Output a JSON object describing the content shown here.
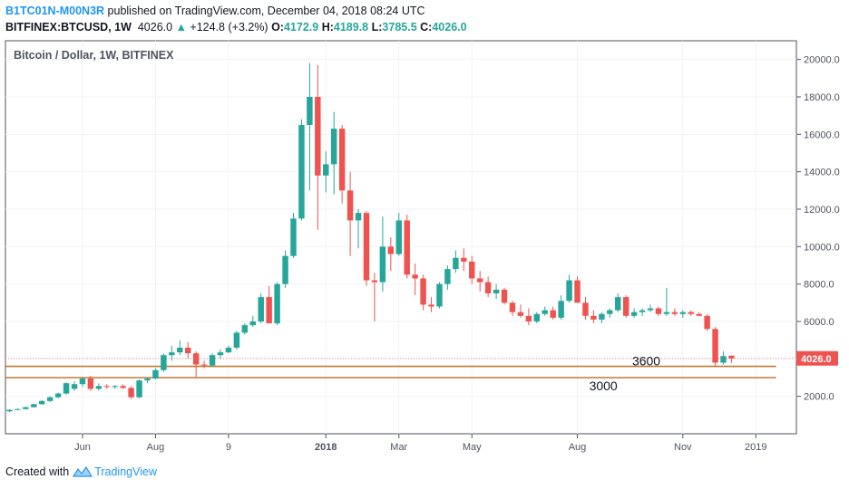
{
  "header": {
    "author": "B1TC01N-M00N3R",
    "published_text": " published on TradingView.com, December 04, 2018 08:24 UTC",
    "symbol": "BITFINEX:BTCUSD, 1W",
    "last": "4026.0",
    "change_arrow": "▲",
    "change": "+124.8 (+3.2%)",
    "o_label": "O:",
    "o_value": "4172.9",
    "h_label": "H:",
    "h_value": "4189.8",
    "l_label": "L:",
    "l_value": "3785.5",
    "c_label": "C:",
    "c_value": "4026.0"
  },
  "footer": {
    "created_with": "Created with",
    "brand": "TradingView"
  },
  "colors": {
    "up": "#26a69a",
    "down": "#ef5350",
    "level_line": "#c07a32",
    "price_label_bg": "#ef5350",
    "grid": "#f0f3fa",
    "axis": "#50535e"
  },
  "chart_data": {
    "type": "candlestick",
    "title": "Bitcoin / Dollar, 1W, BITFINEX",
    "y_axis": {
      "ticks": [
        2000,
        4000,
        6000,
        8000,
        10000,
        12000,
        14000,
        16000,
        18000,
        20000
      ],
      "tick_labels": [
        "2000.0",
        "4000.0",
        "6000.0",
        "8000.0",
        "10000.0",
        "12000.0",
        "14000.0",
        "16000.0",
        "18000.0",
        "20000.0"
      ],
      "range": [
        0,
        21000
      ]
    },
    "x_axis": {
      "ticks": [
        {
          "label": "Jun",
          "week": 9,
          "bold": false
        },
        {
          "label": "Aug",
          "week": 18,
          "bold": false
        },
        {
          "label": "9",
          "week": 27,
          "bold": false
        },
        {
          "label": "2018",
          "week": 39,
          "bold": true
        },
        {
          "label": "Mar",
          "week": 48,
          "bold": false
        },
        {
          "label": "May",
          "week": 57,
          "bold": false
        },
        {
          "label": "Aug",
          "week": 70,
          "bold": false
        },
        {
          "label": "Nov",
          "week": 83,
          "bold": false
        },
        {
          "label": "2019",
          "week": 92,
          "bold": false
        }
      ],
      "week_range": [
        -0.5,
        97
      ]
    },
    "current_price": {
      "value": 4026.0,
      "label": "4026.0"
    },
    "levels": [
      {
        "value": 3600,
        "label": "3600"
      },
      {
        "value": 3000,
        "label": "3000"
      }
    ],
    "candles": [
      [
        1200,
        1300,
        1150,
        1280
      ],
      [
        1280,
        1350,
        1250,
        1320
      ],
      [
        1320,
        1450,
        1300,
        1420
      ],
      [
        1420,
        1600,
        1400,
        1580
      ],
      [
        1580,
        1800,
        1550,
        1750
      ],
      [
        1750,
        2000,
        1700,
        1950
      ],
      [
        1950,
        2200,
        1900,
        2150
      ],
      [
        2150,
        2750,
        2100,
        2700
      ],
      [
        2400,
        2800,
        2300,
        2650
      ],
      [
        2650,
        3000,
        2500,
        2950
      ],
      [
        2950,
        3100,
        2300,
        2400
      ],
      [
        2400,
        2700,
        2300,
        2550
      ],
      [
        2550,
        2650,
        2400,
        2500
      ],
      [
        2500,
        2600,
        2400,
        2550
      ],
      [
        2550,
        2650,
        2400,
        2450
      ],
      [
        2450,
        2550,
        1850,
        1950
      ],
      [
        1950,
        2900,
        1900,
        2850
      ],
      [
        2850,
        3000,
        2700,
        2950
      ],
      [
        2950,
        3500,
        2900,
        3400
      ],
      [
        3400,
        4300,
        3300,
        4200
      ],
      [
        4200,
        4700,
        3900,
        4350
      ],
      [
        4350,
        5000,
        4200,
        4600
      ],
      [
        4600,
        4900,
        4000,
        4300
      ],
      [
        4300,
        4400,
        3000,
        3700
      ],
      [
        3700,
        3900,
        3500,
        3650
      ],
      [
        3650,
        4300,
        3600,
        4200
      ],
      [
        4200,
        4500,
        4000,
        4350
      ],
      [
        4350,
        4700,
        4300,
        4600
      ],
      [
        4600,
        5500,
        4500,
        5400
      ],
      [
        5400,
        5900,
        5300,
        5800
      ],
      [
        5800,
        6300,
        5700,
        6000
      ],
      [
        6000,
        7500,
        5900,
        7300
      ],
      [
        7300,
        7900,
        6000,
        5900
      ],
      [
        5900,
        8100,
        5800,
        8000
      ],
      [
        8000,
        9800,
        7800,
        9500
      ],
      [
        9500,
        11800,
        9400,
        11500
      ],
      [
        11500,
        16800,
        11400,
        16500
      ],
      [
        16500,
        19800,
        13000,
        18000
      ],
      [
        18000,
        19700,
        10900,
        13800
      ],
      [
        13800,
        15100,
        12900,
        14400
      ],
      [
        14400,
        17200,
        12800,
        16300
      ],
      [
        16300,
        16500,
        12300,
        13000
      ],
      [
        13000,
        14000,
        9500,
        11400
      ],
      [
        11400,
        12000,
        9900,
        11800
      ],
      [
        11800,
        11900,
        7900,
        8200
      ],
      [
        8200,
        8600,
        6000,
        8100
      ],
      [
        8100,
        11600,
        7600,
        10000
      ],
      [
        10000,
        10500,
        8700,
        9600
      ],
      [
        9600,
        11800,
        9500,
        11400
      ],
      [
        11400,
        11700,
        8300,
        8500
      ],
      [
        8500,
        9100,
        7400,
        8300
      ],
      [
        8300,
        8500,
        6600,
        6900
      ],
      [
        6900,
        7300,
        6500,
        6800
      ],
      [
        6800,
        8100,
        6700,
        8000
      ],
      [
        8000,
        9000,
        7700,
        8800
      ],
      [
        8800,
        9800,
        8600,
        9400
      ],
      [
        9400,
        9900,
        8700,
        9200
      ],
      [
        9200,
        9500,
        8000,
        8300
      ],
      [
        8300,
        8700,
        7600,
        8100
      ],
      [
        8100,
        8400,
        7300,
        7500
      ],
      [
        7500,
        8000,
        7200,
        7700
      ],
      [
        7700,
        7800,
        6900,
        7000
      ],
      [
        7000,
        7100,
        6300,
        6500
      ],
      [
        6500,
        6900,
        6200,
        6300
      ],
      [
        6300,
        6700,
        5800,
        6000
      ],
      [
        6000,
        6500,
        5900,
        6400
      ],
      [
        6400,
        6800,
        6300,
        6600
      ],
      [
        6600,
        6800,
        6100,
        6200
      ],
      [
        6200,
        7400,
        6100,
        7100
      ],
      [
        7100,
        8500,
        7000,
        8200
      ],
      [
        8200,
        8400,
        7000,
        7000
      ],
      [
        7000,
        7300,
        6100,
        6300
      ],
      [
        6300,
        6600,
        5900,
        6100
      ],
      [
        6100,
        6500,
        5900,
        6400
      ],
      [
        6400,
        6700,
        6200,
        6600
      ],
      [
        6600,
        7500,
        6500,
        7300
      ],
      [
        7300,
        7400,
        6200,
        6300
      ],
      [
        6300,
        6700,
        6200,
        6500
      ],
      [
        6500,
        6700,
        6300,
        6600
      ],
      [
        6600,
        6900,
        6500,
        6700
      ],
      [
        6700,
        6800,
        6300,
        6400
      ],
      [
        6400,
        7800,
        6300,
        6500
      ],
      [
        6500,
        6700,
        6300,
        6400
      ],
      [
        6400,
        6600,
        6200,
        6500
      ],
      [
        6500,
        6600,
        6300,
        6400
      ],
      [
        6400,
        6500,
        6300,
        6300
      ],
      [
        6300,
        6400,
        5500,
        5600
      ],
      [
        5600,
        5700,
        3600,
        3800
      ],
      [
        3800,
        4400,
        3700,
        4150
      ],
      [
        4172.9,
        4189.8,
        3785.5,
        4026.0
      ]
    ]
  }
}
